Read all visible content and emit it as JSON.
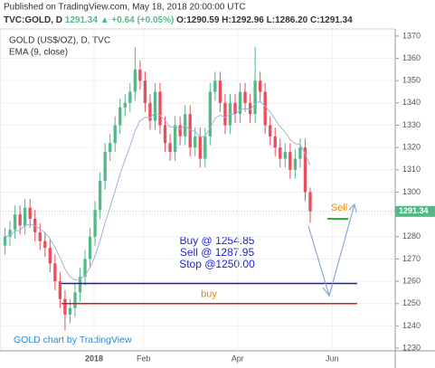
{
  "chart_data": {
    "type": "candlestick",
    "published": "Published on TradingView.com, May 18, 2018 20:00:00 UTC",
    "info": {
      "symbol": "TVC:GOLD, D",
      "last": "1291.34",
      "change": "▲ +0.64 (+0.05%)",
      "o": "O:1290.59",
      "h": "H:1292.96",
      "l": "L:1286.20",
      "c": "C:1291.34"
    },
    "title": "GOLD (US$/OZ), D, TVC",
    "indicator": "EMA (9, close)",
    "watermark": "GOLD chart by TradingView",
    "up_color": "#53b987",
    "down_color": "#eb4d5c",
    "ema_color": "#9fb3d9",
    "xlim": [
      -1,
      78
    ],
    "xticks": [
      {
        "value": 17.8,
        "label": "2018"
      },
      {
        "value": 27.7,
        "label": "Feb"
      },
      {
        "value": 46.5,
        "label": "Apr"
      },
      {
        "value": 65.4,
        "label": "Jun"
      }
    ],
    "ylim": [
      1228.8,
      1373.2
    ],
    "yticks": [
      1230,
      1240,
      1250,
      1260,
      1270,
      1280,
      1290,
      1300,
      1310,
      1320,
      1330,
      1340,
      1350,
      1360,
      1370
    ],
    "last_price": {
      "value": 1291.34,
      "label": "1291.34"
    },
    "open": [
      1276,
      1280,
      1283,
      1290,
      1285,
      1293,
      1288,
      1282,
      1278,
      1275,
      1268,
      1260,
      1252,
      1245,
      1248,
      1255,
      1262,
      1270,
      1280,
      1292,
      1305,
      1318,
      1322,
      1330,
      1338,
      1340,
      1345,
      1355,
      1350,
      1340,
      1332,
      1345,
      1330,
      1322,
      1318,
      1330,
      1325,
      1335,
      1320,
      1325,
      1315,
      1325,
      1345,
      1350,
      1340,
      1330,
      1340,
      1335,
      1345,
      1340,
      1335,
      1350,
      1345,
      1330,
      1325,
      1320,
      1315,
      1318,
      1310,
      1315,
      1320,
      1300
    ],
    "high": [
      1284,
      1287,
      1294,
      1294,
      1297,
      1297,
      1292,
      1286,
      1282,
      1279,
      1272,
      1264,
      1256,
      1252,
      1259,
      1266,
      1274,
      1284,
      1296,
      1309,
      1322,
      1326,
      1334,
      1342,
      1344,
      1349,
      1365,
      1359,
      1354,
      1344,
      1349,
      1349,
      1334,
      1326,
      1334,
      1334,
      1339,
      1339,
      1329,
      1329,
      1329,
      1349,
      1354,
      1354,
      1344,
      1344,
      1344,
      1349,
      1349,
      1344,
      1365,
      1354,
      1349,
      1334,
      1329,
      1324,
      1322,
      1322,
      1319,
      1324,
      1324,
      1302
    ],
    "low": [
      1272,
      1276,
      1279,
      1281,
      1281,
      1284,
      1278,
      1274,
      1271,
      1264,
      1256,
      1248,
      1238,
      1241,
      1244,
      1251,
      1258,
      1266,
      1276,
      1288,
      1301,
      1314,
      1318,
      1326,
      1334,
      1336,
      1341,
      1346,
      1336,
      1328,
      1328,
      1326,
      1318,
      1314,
      1314,
      1321,
      1321,
      1316,
      1316,
      1311,
      1311,
      1321,
      1341,
      1336,
      1326,
      1326,
      1331,
      1331,
      1336,
      1331,
      1331,
      1341,
      1326,
      1321,
      1316,
      1311,
      1311,
      1306,
      1306,
      1311,
      1296,
      1286.2
    ],
    "close": [
      1280,
      1283,
      1290,
      1285,
      1293,
      1288,
      1282,
      1278,
      1275,
      1268,
      1260,
      1252,
      1245,
      1248,
      1255,
      1262,
      1270,
      1280,
      1292,
      1305,
      1318,
      1322,
      1330,
      1338,
      1340,
      1345,
      1355,
      1350,
      1340,
      1332,
      1345,
      1330,
      1322,
      1318,
      1330,
      1325,
      1335,
      1320,
      1325,
      1315,
      1325,
      1345,
      1350,
      1340,
      1330,
      1340,
      1335,
      1345,
      1340,
      1335,
      1350,
      1345,
      1330,
      1325,
      1320,
      1315,
      1318,
      1310,
      1315,
      1320,
      1300,
      1291.34
    ],
    "ema": [
      1280,
      1280.6,
      1282.5,
      1283,
      1285,
      1285.6,
      1284.9,
      1283.5,
      1281.8,
      1279,
      1275.2,
      1270.6,
      1265.5,
      1262,
      1260.6,
      1260.9,
      1262.7,
      1266.2,
      1271.3,
      1278.1,
      1286.1,
      1293.3,
      1300.6,
      1308.1,
      1314.5,
      1320.6,
      1327.5,
      1332,
      1333.6,
      1333.3,
      1335.6,
      1334.5,
      1332,
      1329.2,
      1329.4,
      1328.5,
      1329.8,
      1327.8,
      1327.3,
      1324.8,
      1324.9,
      1328.9,
      1333.1,
      1334.5,
      1333.6,
      1334.9,
      1334.9,
      1336.9,
      1337.5,
      1337,
      1339.6,
      1340.7,
      1338.6,
      1335.9,
      1332.7,
      1329.2,
      1326.9,
      1323.5,
      1321.8,
      1321.4,
      1317.1,
      1312
    ],
    "annotations": {
      "plan": [
        "Buy @ 1254.85",
        "Sell @ 1287.95",
        "Stop @1250.00"
      ],
      "buy_label": "buy",
      "sell_label": "Sell",
      "buy_line": 1259,
      "stop_line": 1250,
      "sell_line": 1288
    }
  }
}
